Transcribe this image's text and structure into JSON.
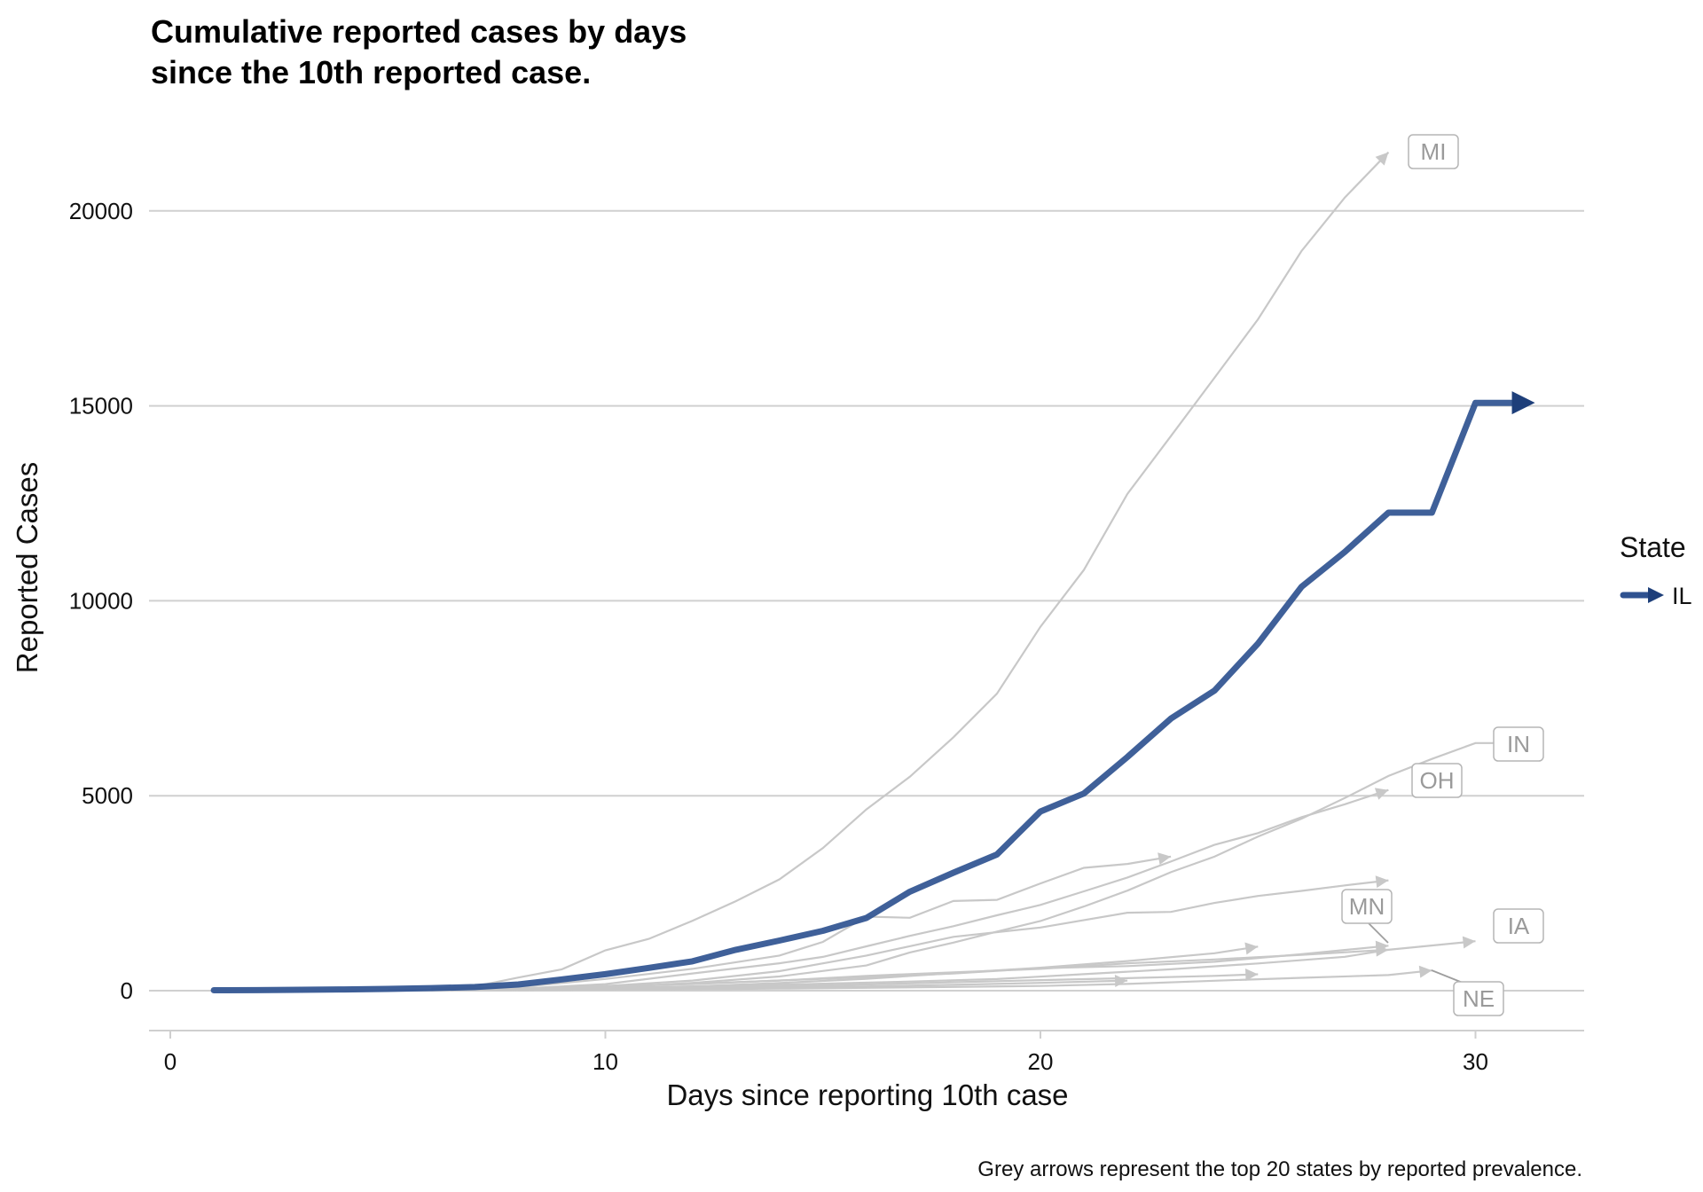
{
  "chart_data": {
    "type": "line",
    "title_lines": [
      "Cumulative reported cases by days",
      "since the 10th reported case."
    ],
    "xlabel": "Days since reporting 10th case",
    "ylabel": "Reported Cases",
    "caption": "Grey arrows represent the top 20 states by reported prevalence.",
    "xlim": [
      -0.5,
      32.5
    ],
    "ylim": [
      -1000,
      22000
    ],
    "x_ticks": [
      0,
      10,
      20,
      30
    ],
    "y_ticks": [
      0,
      5000,
      10000,
      15000,
      20000
    ],
    "grid": "horizontal major gridlines",
    "legend": {
      "title": "State",
      "placement": "right",
      "entries": [
        "IL"
      ]
    },
    "colors": {
      "highlight": "#2f5290",
      "highlight_arrow": "#1e3f7a",
      "grey": "#c8c8c8",
      "label_text": "#9a9a9a"
    },
    "highlight_series": {
      "name": "IL",
      "x": [
        1,
        2,
        3,
        4,
        5,
        6,
        7,
        8,
        9,
        10,
        11,
        12,
        13,
        14,
        15,
        16,
        17,
        18,
        19,
        20,
        21,
        22,
        23,
        24,
        25,
        26,
        27,
        28,
        29,
        30,
        31
      ],
      "values": [
        12,
        14,
        22,
        32,
        46,
        66,
        93,
        160,
        288,
        422,
        585,
        753,
        1049,
        1285,
        1535,
        1865,
        2538,
        3026,
        3491,
        4596,
        5057,
        5994,
        6980,
        7695,
        8904,
        10357,
        11256,
        12262,
        12262,
        15078,
        15078
      ]
    },
    "grey_series": [
      {
        "name": "MI",
        "labeled": true,
        "x": [
          6,
          7,
          8,
          9,
          10,
          11,
          12,
          13,
          14,
          15,
          16,
          17,
          18,
          19,
          20,
          21,
          22,
          23,
          24,
          25,
          26,
          27,
          28
        ],
        "values": [
          53,
          110,
          336,
          549,
          1035,
          1328,
          1791,
          2295,
          2856,
          3657,
          4650,
          5486,
          6498,
          7615,
          9334,
          10791,
          12744,
          14225,
          15718,
          17221,
          18970,
          20346,
          21504
        ]
      },
      {
        "name": "IN",
        "labeled": true,
        "x": [
          6,
          8,
          10,
          12,
          14,
          16,
          17,
          18,
          19,
          20,
          21,
          22,
          23,
          24,
          25,
          26,
          27,
          28,
          29,
          30,
          31
        ],
        "values": [
          10,
          30,
          79,
          201,
          365,
          645,
          981,
          1232,
          1514,
          1786,
          2159,
          2565,
          3039,
          3437,
          3953,
          4411,
          4944,
          5507,
          5943,
          6351,
          6351
        ]
      },
      {
        "name": "OH",
        "labeled": true,
        "x": [
          6,
          8,
          10,
          12,
          14,
          15,
          16,
          17,
          18,
          19,
          20,
          21,
          22,
          23,
          24,
          25,
          26,
          27,
          28
        ],
        "values": [
          13,
          50,
          169,
          442,
          704,
          867,
          1137,
          1406,
          1653,
          1933,
          2199,
          2547,
          2902,
          3312,
          3739,
          4043,
          4450,
          4782,
          5148
        ]
      },
      {
        "name": "MN",
        "labeled": true,
        "x": [
          6,
          8,
          10,
          12,
          14,
          16,
          18,
          20,
          22,
          24,
          26,
          28
        ],
        "values": [
          21,
          60,
          115,
          169,
          262,
          346,
          441,
          576,
          629,
          742,
          935,
          1154
        ]
      },
      {
        "name": "IA",
        "labeled": true,
        "x": [
          5,
          7,
          9,
          11,
          13,
          15,
          17,
          19,
          21,
          23,
          25,
          27,
          28,
          30
        ],
        "values": [
          14,
          22,
          45,
          90,
          124,
          179,
          235,
          298,
          424,
          549,
          699,
          868,
          1048,
          1270
        ]
      },
      {
        "name": "NE",
        "labeled": true,
        "x": [
          8,
          10,
          12,
          14,
          16,
          18,
          20,
          22,
          24,
          26,
          28,
          29
        ],
        "values": [
          17,
          28,
          37,
          52,
          73,
          96,
          120,
          172,
          255,
          330,
          400,
          519
        ]
      },
      {
        "name": "",
        "labeled": false,
        "x": [
          6,
          8,
          10,
          12,
          14,
          15,
          16,
          17,
          18,
          19,
          20,
          21,
          22,
          23
        ],
        "values": [
          20,
          90,
          300,
          560,
          900,
          1250,
          1900,
          1870,
          2300,
          2330,
          2750,
          3150,
          3250,
          3440
        ]
      },
      {
        "name": "",
        "labeled": false,
        "x": [
          6,
          8,
          10,
          12,
          14,
          16,
          18,
          20,
          22,
          23,
          24,
          25,
          26,
          27,
          28
        ],
        "values": [
          15,
          40,
          120,
          260,
          500,
          900,
          1380,
          1620,
          2000,
          2020,
          2250,
          2430,
          2560,
          2700,
          2830
        ]
      },
      {
        "name": "",
        "labeled": false,
        "x": [
          6,
          8,
          10,
          12,
          14,
          16,
          18,
          20,
          22,
          24,
          25
        ],
        "values": [
          10,
          25,
          55,
          110,
          195,
          305,
          450,
          590,
          760,
          960,
          1130
        ]
      },
      {
        "name": "",
        "labeled": false,
        "x": [
          6,
          8,
          10,
          12,
          14,
          16,
          18,
          20,
          22,
          24,
          25
        ],
        "values": [
          10,
          20,
          40,
          70,
          110,
          160,
          215,
          270,
          320,
          380,
          420
        ]
      },
      {
        "name": "",
        "labeled": false,
        "x": [
          6,
          8,
          10,
          12,
          14,
          16,
          18,
          20,
          22
        ],
        "values": [
          10,
          18,
          30,
          50,
          75,
          110,
          150,
          200,
          260
        ]
      },
      {
        "name": "",
        "labeled": false,
        "x": [
          6,
          8,
          10,
          12,
          14,
          16,
          18,
          20,
          22,
          24,
          26,
          28
        ],
        "values": [
          10,
          40,
          100,
          180,
          260,
          380,
          470,
          560,
          700,
          800,
          920,
          1050
        ]
      }
    ],
    "arrow_endpoints_extra": [
      {
        "x": 23,
        "value": 3440
      },
      {
        "x": 28,
        "value": 2830
      },
      {
        "x": 25,
        "value": 1130
      },
      {
        "x": 25,
        "value": 420
      },
      {
        "x": 22,
        "value": 260
      }
    ]
  }
}
